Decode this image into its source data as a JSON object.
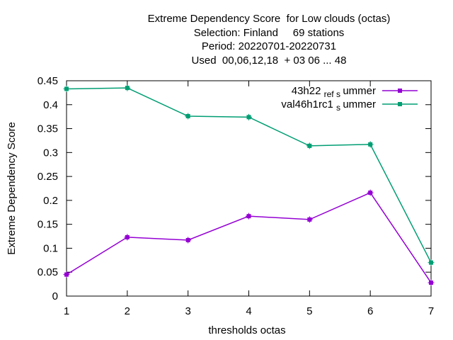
{
  "chart_data": {
    "type": "line",
    "title_lines": [
      "Extreme Dependency Score  for Low clouds (octas)",
      "Selection: Finland     69 stations",
      "Period: 20220701-20220731",
      "Used  00,06,12,18  + 03 06 ... 48"
    ],
    "xlabel": "thresholds octas",
    "ylabel": "Extreme Dependency Score",
    "x": [
      1,
      2,
      3,
      4,
      5,
      6,
      7
    ],
    "xlim": [
      1,
      7
    ],
    "ylim": [
      0,
      0.45
    ],
    "yticks": [
      "0",
      "0.05",
      "0.1",
      "0.15",
      "0.2",
      "0.25",
      "0.3",
      "0.35",
      "0.4",
      "0.45"
    ],
    "xticks": [
      "1",
      "2",
      "3",
      "4",
      "5",
      "6",
      "7"
    ],
    "grid": false,
    "legend_position": "top-right",
    "series": [
      {
        "name_parts": [
          "43h22",
          "ref",
          "s",
          "ummer"
        ],
        "color": "#9400d3",
        "values": [
          0.045,
          0.123,
          0.117,
          0.167,
          0.16,
          0.216,
          0.028
        ]
      },
      {
        "name_parts": [
          "val46h1rc1",
          "",
          "s",
          "ummer"
        ],
        "color": "#009e73",
        "values": [
          0.433,
          0.435,
          0.376,
          0.374,
          0.314,
          0.317,
          0.07
        ]
      }
    ]
  }
}
